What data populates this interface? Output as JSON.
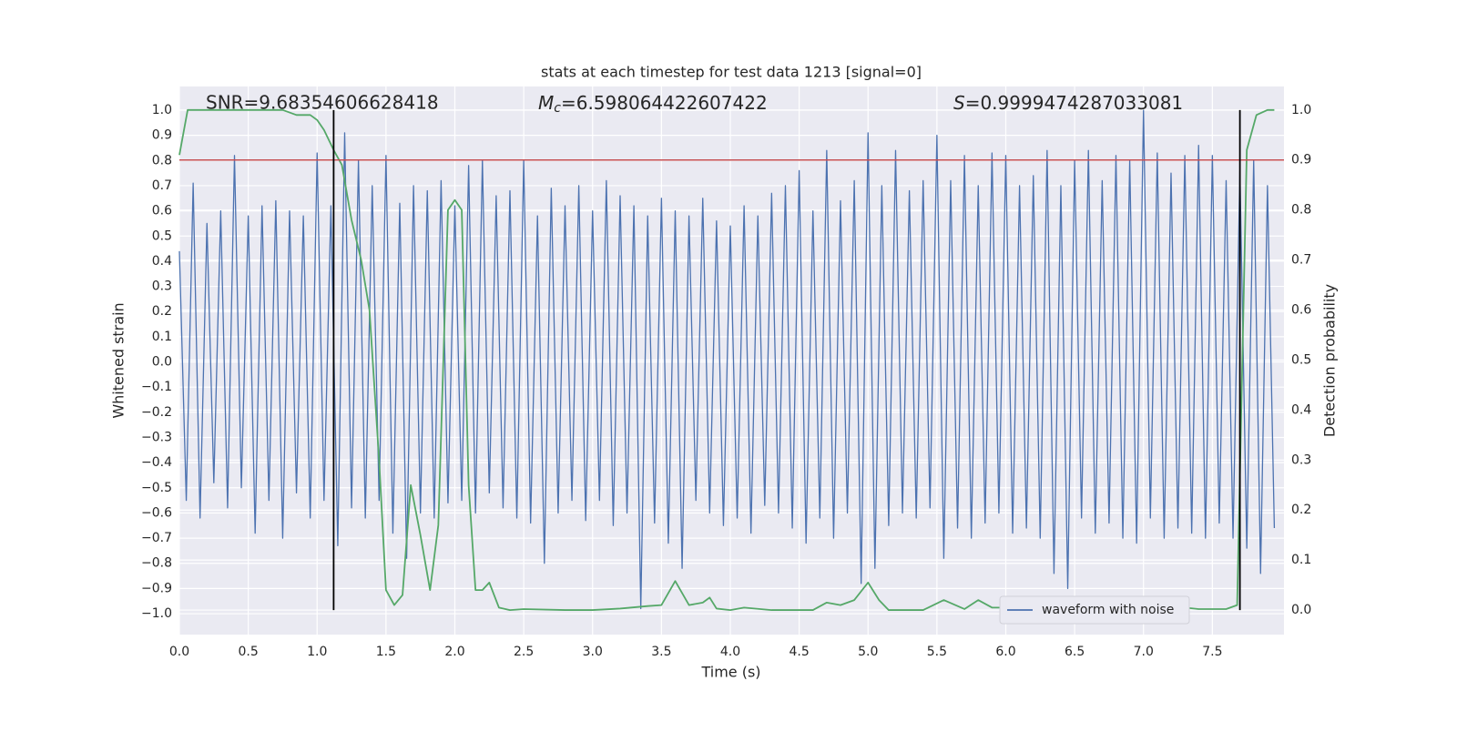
{
  "chart_data": {
    "type": "line",
    "title": "stats at each timestep for test data 1213 [signal=0]",
    "xlabel": "Time (s)",
    "ylabel": "Whitened strain",
    "y2label": "Detection probability",
    "annotations": [
      {
        "text": "SNR=9.68354606628418"
      },
      {
        "symbol": "M",
        "subscript": "c",
        "text": "=6.598064422607422"
      },
      {
        "symbol": "S",
        "text": "=0.9999474287033081"
      }
    ],
    "xlim": [
      0,
      8.02
    ],
    "ylim": [
      -1.083,
      1.094
    ],
    "y2lim": [
      -0.049,
      1.047
    ],
    "grid": true,
    "xticks": [
      {
        "value": 0,
        "label": "0.0"
      },
      {
        "value": 0.5,
        "label": "0.5"
      },
      {
        "value": 1,
        "label": "1.0"
      },
      {
        "value": 1.5,
        "label": "1.5"
      },
      {
        "value": 2,
        "label": "2.0"
      },
      {
        "value": 2.5,
        "label": "2.5"
      },
      {
        "value": 3,
        "label": "3.0"
      },
      {
        "value": 3.5,
        "label": "3.5"
      },
      {
        "value": 4,
        "label": "4.0"
      },
      {
        "value": 4.5,
        "label": "4.5"
      },
      {
        "value": 5,
        "label": "5.0"
      },
      {
        "value": 5.5,
        "label": "5.5"
      },
      {
        "value": 6,
        "label": "6.0"
      },
      {
        "value": 6.5,
        "label": "6.5"
      },
      {
        "value": 7,
        "label": "7.0"
      },
      {
        "value": 7.5,
        "label": "7.5"
      }
    ],
    "yticks": [
      {
        "value": -1,
        "label": "−1.0"
      },
      {
        "value": -0.9,
        "label": "−0.9"
      },
      {
        "value": -0.8,
        "label": "−0.8"
      },
      {
        "value": -0.7,
        "label": "−0.7"
      },
      {
        "value": -0.6,
        "label": "−0.6"
      },
      {
        "value": -0.5,
        "label": "−0.5"
      },
      {
        "value": -0.4,
        "label": "−0.4"
      },
      {
        "value": -0.3,
        "label": "−0.3"
      },
      {
        "value": -0.2,
        "label": "−0.2"
      },
      {
        "value": -0.1,
        "label": "−0.1"
      },
      {
        "value": 0,
        "label": "0.0"
      },
      {
        "value": 0.1,
        "label": "0.1"
      },
      {
        "value": 0.2,
        "label": "0.2"
      },
      {
        "value": 0.3,
        "label": "0.3"
      },
      {
        "value": 0.4,
        "label": "0.4"
      },
      {
        "value": 0.5,
        "label": "0.5"
      },
      {
        "value": 0.6,
        "label": "0.6"
      },
      {
        "value": 0.7,
        "label": "0.7"
      },
      {
        "value": 0.8,
        "label": "0.8"
      },
      {
        "value": 0.9,
        "label": "0.9"
      },
      {
        "value": 1,
        "label": "1.0"
      }
    ],
    "y2ticks": [
      {
        "value": 0,
        "label": "0.0"
      },
      {
        "value": 0.1,
        "label": "0.1"
      },
      {
        "value": 0.2,
        "label": "0.2"
      },
      {
        "value": 0.3,
        "label": "0.3"
      },
      {
        "value": 0.4,
        "label": "0.4"
      },
      {
        "value": 0.5,
        "label": "0.5"
      },
      {
        "value": 0.6,
        "label": "0.6"
      },
      {
        "value": 0.7,
        "label": "0.7"
      },
      {
        "value": 0.8,
        "label": "0.8"
      },
      {
        "value": 0.9,
        "label": "0.9"
      },
      {
        "value": 1,
        "label": "1.0"
      }
    ],
    "threshold": {
      "value": 0.9,
      "axis": "y2",
      "color": "#c44e52"
    },
    "vlines": {
      "x": [
        1.12,
        7.7
      ],
      "color": "#000000"
    },
    "legend": "lower right",
    "series": [
      {
        "name": "waveform with noise",
        "color": "#4c72b0",
        "x": [
          0,
          0.05,
          0.1,
          0.15,
          0.2,
          0.25,
          0.3,
          0.35,
          0.4,
          0.45,
          0.5,
          0.55,
          0.6,
          0.65,
          0.7,
          0.75,
          0.8,
          0.85,
          0.9,
          0.95,
          1,
          1.05,
          1.1,
          1.15,
          1.2,
          1.25,
          1.3,
          1.35,
          1.4,
          1.45,
          1.5,
          1.55,
          1.6,
          1.65,
          1.7,
          1.75,
          1.8,
          1.85,
          1.9,
          1.95,
          2,
          2.05,
          2.1,
          2.15,
          2.2,
          2.25,
          2.3,
          2.35,
          2.4,
          2.45,
          2.5,
          2.55,
          2.6,
          2.65,
          2.7,
          2.75,
          2.8,
          2.85,
          2.9,
          2.95,
          3,
          3.05,
          3.1,
          3.15,
          3.2,
          3.25,
          3.3,
          3.35,
          3.4,
          3.45,
          3.5,
          3.55,
          3.6,
          3.65,
          3.7,
          3.75,
          3.8,
          3.85,
          3.9,
          3.95,
          4,
          4.05,
          4.1,
          4.15,
          4.2,
          4.25,
          4.3,
          4.35,
          4.4,
          4.45,
          4.5,
          4.55,
          4.6,
          4.65,
          4.7,
          4.75,
          4.8,
          4.85,
          4.9,
          4.95,
          5,
          5.05,
          5.1,
          5.15,
          5.2,
          5.25,
          5.3,
          5.35,
          5.4,
          5.45,
          5.5,
          5.55,
          5.6,
          5.65,
          5.7,
          5.75,
          5.8,
          5.85,
          5.9,
          5.95,
          6,
          6.05,
          6.1,
          6.15,
          6.2,
          6.25,
          6.3,
          6.35,
          6.4,
          6.45,
          6.5,
          6.55,
          6.6,
          6.65,
          6.7,
          6.75,
          6.8,
          6.85,
          6.9,
          6.95,
          7,
          7.05,
          7.1,
          7.15,
          7.2,
          7.25,
          7.3,
          7.35,
          7.4,
          7.45,
          7.5,
          7.55,
          7.6,
          7.65,
          7.7,
          7.75,
          7.8,
          7.85,
          7.9,
          7.95
        ],
        "values": [
          0.44,
          -0.55,
          0.71,
          -0.62,
          0.55,
          -0.48,
          0.6,
          -0.58,
          0.82,
          -0.5,
          0.58,
          -0.68,
          0.62,
          -0.55,
          0.64,
          -0.7,
          0.6,
          -0.52,
          0.58,
          -0.62,
          0.83,
          -0.55,
          0.62,
          -0.73,
          0.91,
          -0.58,
          0.8,
          -0.62,
          0.7,
          -0.55,
          0.82,
          -0.68,
          0.63,
          -0.78,
          0.7,
          -0.6,
          0.68,
          -0.62,
          0.72,
          -0.56,
          0.62,
          -0.55,
          0.78,
          -0.6,
          0.8,
          -0.52,
          0.66,
          -0.58,
          0.68,
          -0.62,
          0.8,
          -0.64,
          0.58,
          -0.8,
          0.69,
          -0.6,
          0.62,
          -0.55,
          0.7,
          -0.63,
          0.6,
          -0.55,
          0.72,
          -0.65,
          0.66,
          -0.6,
          0.62,
          -0.98,
          0.58,
          -0.64,
          0.65,
          -0.72,
          0.6,
          -0.82,
          0.58,
          -0.55,
          0.65,
          -0.6,
          0.56,
          -0.65,
          0.54,
          -0.62,
          0.62,
          -0.68,
          0.58,
          -0.57,
          0.67,
          -0.6,
          0.7,
          -0.66,
          0.76,
          -0.72,
          0.6,
          -0.62,
          0.84,
          -0.7,
          0.64,
          -0.6,
          0.72,
          -0.88,
          0.91,
          -0.82,
          0.7,
          -0.65,
          0.84,
          -0.6,
          0.68,
          -0.62,
          0.72,
          -0.58,
          0.9,
          -0.78,
          0.72,
          -0.66,
          0.82,
          -0.7,
          0.7,
          -0.64,
          0.83,
          -0.6,
          0.82,
          -0.68,
          0.7,
          -0.66,
          0.74,
          -0.7,
          0.84,
          -0.84,
          0.7,
          -0.9,
          0.8,
          -0.62,
          0.84,
          -0.68,
          0.72,
          -0.64,
          0.82,
          -0.7,
          0.8,
          -0.72,
          1.0,
          -0.62,
          0.83,
          -0.7,
          0.75,
          -0.66,
          0.82,
          -0.68,
          0.86,
          -0.7,
          0.82,
          -0.64,
          0.72,
          -0.7,
          0.76,
          -0.74,
          0.8,
          -0.84,
          0.7,
          -0.66
        ]
      },
      {
        "color": "#55a868",
        "axis": "y2",
        "x": [
          0,
          0.06,
          0.2,
          0.45,
          0.75,
          0.85,
          0.95,
          1,
          1.05,
          1.12,
          1.18,
          1.25,
          1.32,
          1.38,
          1.45,
          1.5,
          1.56,
          1.62,
          1.68,
          1.75,
          1.82,
          1.88,
          1.95,
          2,
          2.05,
          2.1,
          2.15,
          2.2,
          2.25,
          2.32,
          2.4,
          2.5,
          2.8,
          3,
          3.2,
          3.4,
          3.5,
          3.6,
          3.7,
          3.8,
          3.85,
          3.9,
          4,
          4.1,
          4.3,
          4.6,
          4.7,
          4.8,
          4.9,
          5,
          5.08,
          5.15,
          5.4,
          5.55,
          5.7,
          5.8,
          5.9,
          6,
          6.2,
          6.5,
          6.9,
          7.05,
          7.15,
          7.3,
          7.4,
          7.6,
          7.68,
          7.75,
          7.82,
          7.9,
          7.95
        ],
        "values": [
          0.91,
          1,
          1,
          1,
          1,
          0.99,
          0.99,
          0.98,
          0.96,
          0.92,
          0.89,
          0.78,
          0.7,
          0.6,
          0.3,
          0.04,
          0.01,
          0.03,
          0.25,
          0.15,
          0.04,
          0.17,
          0.8,
          0.82,
          0.8,
          0.25,
          0.04,
          0.04,
          0.055,
          0.005,
          0,
          0.002,
          0,
          0,
          0.003,
          0.008,
          0.01,
          0.058,
          0.01,
          0.015,
          0.025,
          0.003,
          0,
          0.005,
          0,
          0,
          0.015,
          0.01,
          0.02,
          0.055,
          0.02,
          0,
          0,
          0.02,
          0.002,
          0.02,
          0.005,
          0.005,
          0.002,
          0,
          0.003,
          0.015,
          0.005,
          0.005,
          0.002,
          0.002,
          0.01,
          0.92,
          0.99,
          1,
          1
        ]
      }
    ]
  }
}
